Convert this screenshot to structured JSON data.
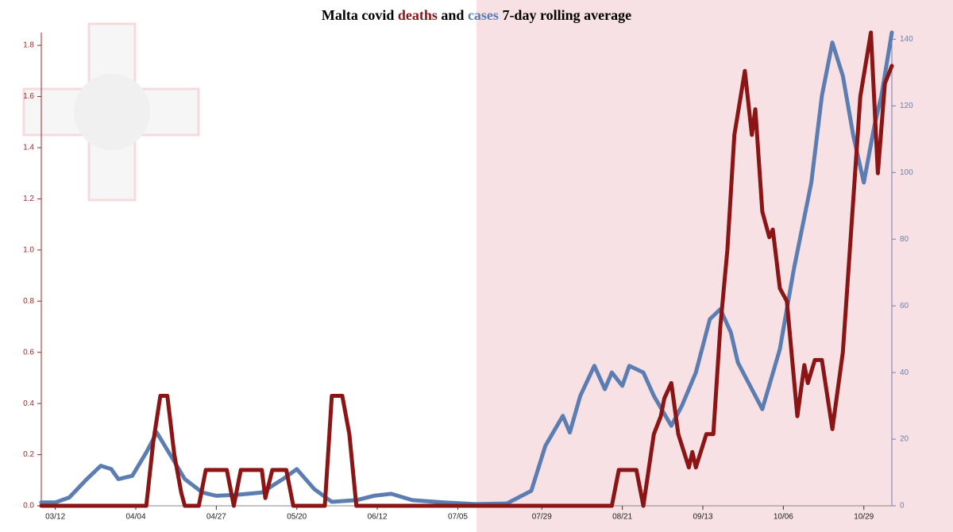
{
  "chart_data": {
    "type": "line",
    "title": {
      "start": "Malta covid",
      "middle": "and",
      "end": "7-day rolling average"
    },
    "xlim": [
      "03/08",
      "11/06"
    ],
    "xticks": [
      "03/12",
      "04/04",
      "04/27",
      "05/20",
      "06/12",
      "07/05",
      "07/29",
      "08/21",
      "09/13",
      "10/06",
      "10/29"
    ],
    "ylim": [
      0,
      1.85
    ],
    "yticks": [
      {
        "value": 0,
        "label": "0.0"
      },
      0.2,
      0.4,
      0.6,
      0.8,
      {
        "value": 1,
        "label": "1.0"
      },
      1.2,
      1.4,
      1.6,
      1.8
    ],
    "y2lim": [
      0,
      142
    ],
    "y2ticks": [
      0,
      20,
      40,
      60,
      80,
      100,
      120,
      140
    ],
    "left_axis_color": "#9b2a2a",
    "right_axis_color": "#6b80b0",
    "series": [
      {
        "name": "deaths",
        "color": "#8b1414",
        "axis": "y",
        "x": [
          "03/08",
          "04/07",
          "04/09",
          "04/11",
          "04/13",
          "04/15",
          "04/17",
          "04/18",
          "04/22",
          "04/24",
          "04/30",
          "05/02",
          "05/04",
          "05/10",
          "05/11",
          "05/13",
          "05/17",
          "05/19",
          "05/28",
          "05/30",
          "06/02",
          "06/04",
          "06/06",
          "08/18",
          "08/20",
          "08/25",
          "08/27",
          "08/30",
          "09/01",
          "09/02",
          "09/04",
          "09/06",
          "09/09",
          "09/10",
          "09/11",
          "09/14",
          "09/16",
          "09/18",
          "09/20",
          "09/22",
          "09/25",
          "09/27",
          "09/28",
          "09/30",
          "10/02",
          "10/03",
          "10/05",
          "10/07",
          "10/10",
          "10/12",
          "10/13",
          "10/15",
          "10/17",
          "10/20",
          "10/23",
          "10/26",
          "10/28",
          "10/31",
          "11/02",
          "11/04",
          "11/06"
        ],
        "values": [
          0,
          0,
          0.25,
          0.43,
          0.43,
          0.2,
          0.05,
          0,
          0,
          0.14,
          0.14,
          0,
          0.14,
          0.14,
          0.03,
          0.14,
          0.14,
          0,
          0,
          0.43,
          0.43,
          0.28,
          0,
          0,
          0.14,
          0.14,
          0,
          0.28,
          0.35,
          0.42,
          0.48,
          0.28,
          0.15,
          0.21,
          0.15,
          0.28,
          0.28,
          0.7,
          1.0,
          1.45,
          1.7,
          1.45,
          1.55,
          1.15,
          1.05,
          1.08,
          0.85,
          0.8,
          0.35,
          0.55,
          0.48,
          0.57,
          0.57,
          0.3,
          0.6,
          1.2,
          1.6,
          1.85,
          1.3,
          1.65,
          1.72
        ]
      },
      {
        "name": "cases",
        "color": "#5b7db1",
        "axis": "y2",
        "x": [
          "03/08",
          "03/12",
          "03/16",
          "03/21",
          "03/25",
          "03/28",
          "03/30",
          "04/03",
          "04/07",
          "04/10",
          "04/14",
          "04/18",
          "04/23",
          "04/27",
          "05/03",
          "05/10",
          "05/16",
          "05/20",
          "05/25",
          "05/30",
          "06/06",
          "06/11",
          "06/16",
          "06/22",
          "07/01",
          "07/10",
          "07/19",
          "07/26",
          "07/30",
          "08/04",
          "08/06",
          "08/09",
          "08/13",
          "08/16",
          "08/18",
          "08/21",
          "08/23",
          "08/27",
          "08/30",
          "09/04",
          "09/07",
          "09/11",
          "09/15",
          "09/18",
          "09/21",
          "09/23",
          "09/27",
          "09/30",
          "10/05",
          "10/09",
          "10/14",
          "10/17",
          "10/20",
          "10/23",
          "10/26",
          "10/29",
          "11/01",
          "11/03",
          "11/06"
        ],
        "values": [
          1,
          1,
          2.5,
          8,
          12,
          11,
          8,
          9,
          16,
          22,
          15,
          8,
          4,
          3,
          3.3,
          4,
          8,
          11,
          5,
          1.2,
          1.7,
          3,
          3.6,
          1.7,
          1,
          0.5,
          0.7,
          4.5,
          18,
          27,
          22,
          33,
          42,
          35,
          40,
          36,
          42,
          40,
          33,
          24,
          30,
          40,
          56,
          59,
          52,
          43,
          35,
          29,
          47,
          71,
          97,
          123,
          139,
          129,
          111,
          97,
          114,
          123,
          142
        ]
      }
    ]
  }
}
